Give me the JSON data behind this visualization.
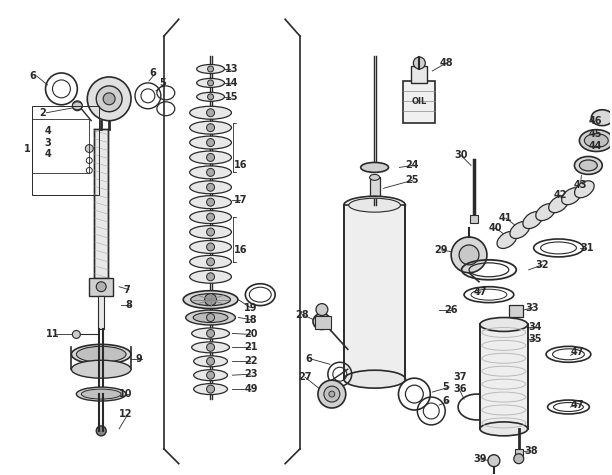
{
  "bg_color": "#ffffff",
  "line_color": "#2a2a2a",
  "fig_width": 6.12,
  "fig_height": 4.75,
  "dpi": 100
}
